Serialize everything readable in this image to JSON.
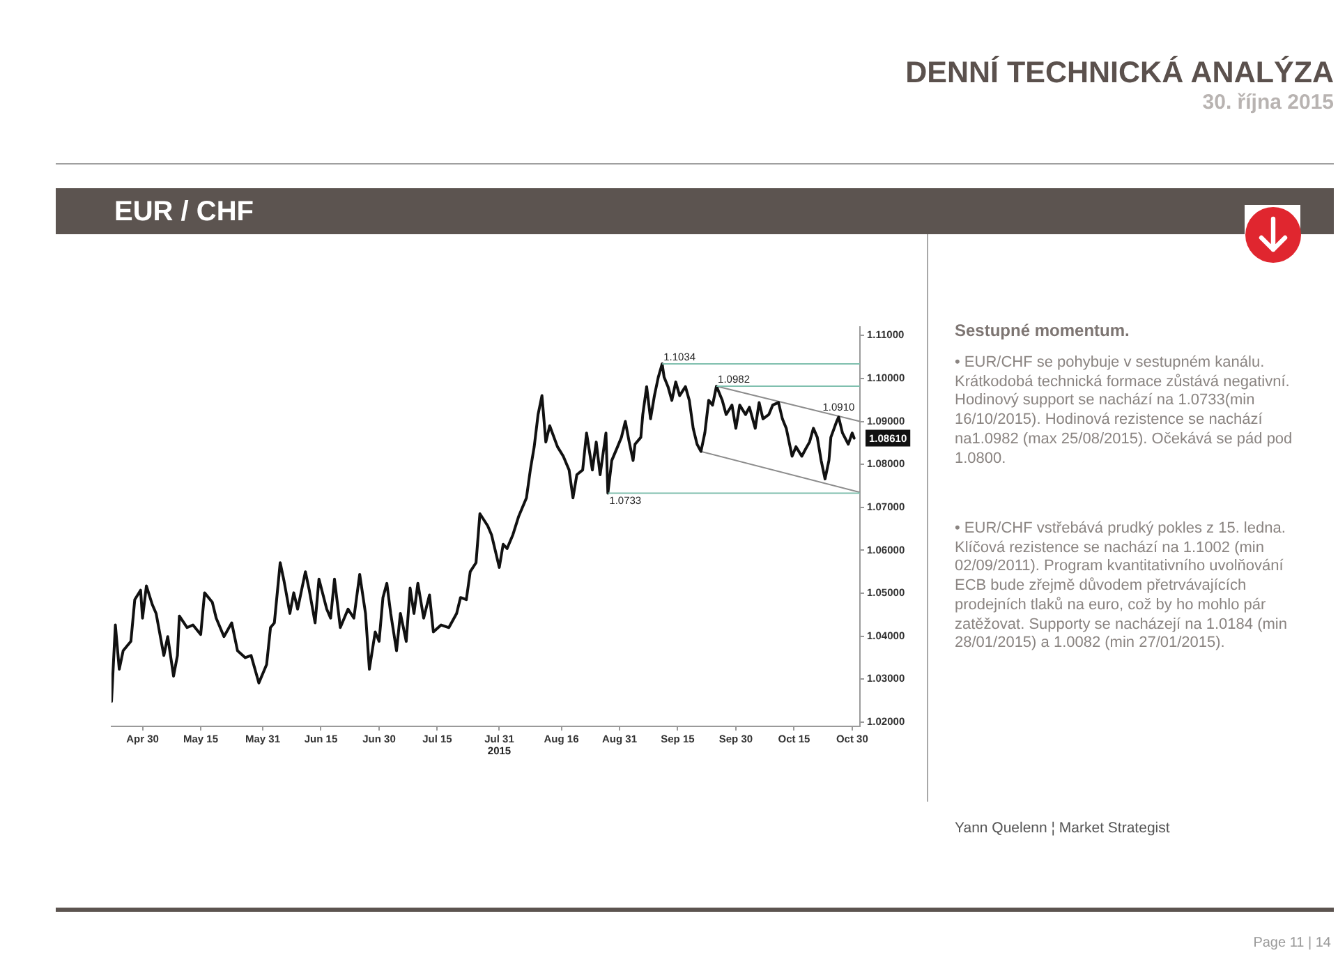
{
  "chart_data": {
    "type": "line",
    "title": "EUR / CHF",
    "x": [
      "2015-04-22",
      "2015-04-23",
      "2015-04-24",
      "2015-04-25",
      "2015-04-27",
      "2015-04-28",
      "2015-04-29T12:00",
      "2015-04-30",
      "2015-05-01",
      "2015-05-02T12:00",
      "2015-05-03T12:00",
      "2015-05-05T12:00",
      "2015-05-06T12:00",
      "2015-05-08",
      "2015-05-09",
      "2015-05-09T12:00",
      "2015-05-11T12:00",
      "2015-05-13",
      "2015-05-15",
      "2015-05-16",
      "2015-05-18",
      "2015-05-19",
      "2015-05-21",
      "2015-05-23",
      "2015-05-24T12:00",
      "2015-05-26T12:00",
      "2015-05-28",
      "2015-05-30",
      "2015-06-01",
      "2015-06-02",
      "2015-06-03",
      "2015-06-04T12:00",
      "2015-06-05T12:00",
      "2015-06-07",
      "2015-06-08",
      "2015-06-09",
      "2015-06-11",
      "2015-06-12",
      "2015-06-13T12:00",
      "2015-06-14T12:00",
      "2015-06-16T12:00",
      "2015-06-17T12:00",
      "2015-06-18T12:00",
      "2015-06-20",
      "2015-06-22",
      "2015-06-23T12:00",
      "2015-06-25",
      "2015-06-26T12:00",
      "2015-06-27T12:00",
      "2015-06-29",
      "2015-06-30",
      "2015-07-01",
      "2015-07-02",
      "2015-07-03",
      "2015-07-04T12:00",
      "2015-07-05T12:00",
      "2015-07-07",
      "2015-07-08",
      "2015-07-09",
      "2015-07-10",
      "2015-07-11T12:00",
      "2015-07-13",
      "2015-07-14",
      "2015-07-16",
      "2015-07-18",
      "2015-07-20",
      "2015-07-21",
      "2015-07-22T12:00",
      "2015-07-23T12:00",
      "2015-07-25",
      "2015-07-26",
      "2015-07-28",
      "2015-07-29",
      "2015-07-31",
      "2015-08-01",
      "2015-08-02",
      "2015-08-03T12:00",
      "2015-08-05",
      "2015-08-07",
      "2015-08-08",
      "2015-08-09",
      "2015-08-10",
      "2015-08-11",
      "2015-08-12",
      "2015-08-13",
      "2015-08-15",
      "2015-08-16T12:00",
      "2015-08-18",
      "2015-08-19",
      "2015-08-20",
      "2015-08-21T12:00",
      "2015-08-22T12:00",
      "2015-08-24",
      "2015-08-25",
      "2015-08-26",
      "2015-08-27T12:00",
      "2015-08-28",
      "2015-08-29",
      "2015-08-30T12:00",
      "2015-08-31T12:00",
      "2015-09-01T12:00",
      "2015-09-02T12:00",
      "2015-09-03T12:00",
      "2015-09-04",
      "2015-09-05T12:00",
      "2015-09-06",
      "2015-09-07",
      "2015-09-08",
      "2015-09-09",
      "2015-09-10",
      "2015-09-11",
      "2015-09-11T12:00",
      "2015-09-12T12:00",
      "2015-09-13T12:00",
      "2015-09-14T12:00",
      "2015-09-15T12:00",
      "2015-09-17",
      "2015-09-18",
      "2015-09-19",
      "2015-09-20",
      "2015-09-21",
      "2015-09-22",
      "2015-09-23",
      "2015-09-24",
      "2015-09-25",
      "2015-09-26T12:00",
      "2015-09-27T12:00",
      "2015-09-29",
      "2015-09-30",
      "2015-10-01",
      "2015-10-02T12:00",
      "2015-10-03T12:00",
      "2015-10-05",
      "2015-10-06",
      "2015-10-07",
      "2015-10-08T12:00",
      "2015-10-09T12:00",
      "2015-10-11",
      "2015-10-12",
      "2015-10-13",
      "2015-10-14T12:00",
      "2015-10-15T12:00",
      "2015-10-17",
      "2015-10-18",
      "2015-10-19",
      "2015-10-20",
      "2015-10-21",
      "2015-10-22",
      "2015-10-23",
      "2015-10-24",
      "2015-10-24T12:00",
      "2015-10-26",
      "2015-10-26T12:00",
      "2015-10-27T12:00",
      "2015-10-29",
      "2015-10-30",
      "2015-10-30T12:00"
    ],
    "series": [
      {
        "color": "#111111",
        "values": [
          1.0248,
          1.0426,
          1.0323,
          1.0366,
          1.0388,
          1.0485,
          1.0507,
          1.0442,
          1.0517,
          1.0474,
          1.0453,
          1.0355,
          1.0399,
          1.0307,
          1.0355,
          1.0447,
          1.042,
          1.0426,
          1.0404,
          1.0501,
          1.0479,
          1.0442,
          1.0399,
          1.0431,
          1.0366,
          1.035,
          1.0355,
          1.0291,
          1.0334,
          1.042,
          1.0431,
          1.0571,
          1.0528,
          1.0453,
          1.0501,
          1.0463,
          1.055,
          1.0507,
          1.0431,
          1.0533,
          1.0463,
          1.0442,
          1.0533,
          1.042,
          1.0463,
          1.0442,
          1.0544,
          1.0453,
          1.0323,
          1.041,
          1.0388,
          1.049,
          1.0523,
          1.0453,
          1.0366,
          1.0453,
          1.0388,
          1.0512,
          1.0453,
          1.0523,
          1.0442,
          1.0496,
          1.041,
          1.0426,
          1.042,
          1.0453,
          1.049,
          1.0485,
          1.055,
          1.0571,
          1.0685,
          1.0657,
          1.0636,
          1.056,
          1.0614,
          1.0604,
          1.0636,
          1.0679,
          1.0722,
          1.0787,
          1.0841,
          1.0916,
          1.096,
          1.0852,
          1.089,
          1.0841,
          1.0819,
          1.0787,
          1.0722,
          1.0776,
          1.0787,
          1.0873,
          1.0787,
          1.0852,
          1.0776,
          1.0873,
          1.0733,
          1.0809,
          1.0841,
          1.0863,
          1.09,
          1.0852,
          1.0809,
          1.0847,
          1.0863,
          1.0916,
          1.0981,
          1.0906,
          1.096,
          1.1003,
          1.1034,
          1.1003,
          1.0981,
          1.0949,
          1.0992,
          1.096,
          1.0981,
          1.0949,
          1.0884,
          1.0847,
          1.083,
          1.0873,
          1.0949,
          1.0938,
          1.0982,
          1.0949,
          1.0916,
          1.0938,
          1.0884,
          1.0938,
          1.0916,
          1.0933,
          1.0884,
          1.0944,
          1.0906,
          1.0916,
          1.0938,
          1.0944,
          1.0906,
          1.0884,
          1.0819,
          1.0841,
          1.0819,
          1.0836,
          1.0852,
          1.0884,
          1.0863,
          1.0809,
          1.0766,
          1.0809,
          1.0863,
          1.09,
          1.091,
          1.0873,
          1.0847,
          1.0873,
          1.0861
        ]
      },
      {
        "type": "line",
        "color": "#8c8c8c",
        "x": [
          "2015-09-25",
          "2015-11-01"
        ],
        "values": [
          1.0982,
          1.09
        ]
      },
      {
        "type": "line",
        "color": "#8c8c8c",
        "x": [
          "2015-09-21",
          "2015-11-01"
        ],
        "values": [
          1.083,
          1.0735
        ]
      }
    ],
    "xlim": [
      "2015-04-22",
      "2015-11-01"
    ],
    "xticks": [
      {
        "value": "2015-04-30",
        "label": "Apr 30"
      },
      {
        "value": "2015-05-15",
        "label": "May 15"
      },
      {
        "value": "2015-05-31",
        "label": "May 31"
      },
      {
        "value": "2015-06-15",
        "label": "Jun 15"
      },
      {
        "value": "2015-06-30",
        "label": "Jun 30"
      },
      {
        "value": "2015-07-15",
        "label": "Jul 15"
      },
      {
        "value": "2015-07-31",
        "label": "Jul 31"
      },
      {
        "value": "2015-08-16",
        "label": "Aug 16"
      },
      {
        "value": "2015-08-31",
        "label": "Aug 31"
      },
      {
        "value": "2015-09-15",
        "label": "Sep 15"
      },
      {
        "value": "2015-09-30",
        "label": "Sep 30"
      },
      {
        "value": "2015-10-15",
        "label": "Oct 15"
      },
      {
        "value": "2015-10-30",
        "label": "Oct 30"
      }
    ],
    "ylim": [
      1.019,
      1.112
    ],
    "yticks": [
      {
        "value": 1.02,
        "label": "1.02000"
      },
      {
        "value": 1.03,
        "label": "1.03000"
      },
      {
        "value": 1.04,
        "label": "1.04000"
      },
      {
        "value": 1.05,
        "label": "1.05000"
      },
      {
        "value": 1.06,
        "label": "1.06000"
      },
      {
        "value": 1.07,
        "label": "1.07000"
      },
      {
        "value": 1.08,
        "label": "1.08000"
      },
      {
        "value": 1.09,
        "label": "1.09000"
      },
      {
        "value": 1.1,
        "label": "1.10000"
      },
      {
        "value": 1.11,
        "label": "1.11000"
      }
    ],
    "ref_lines": [
      {
        "axis": "y",
        "value": 1.1034,
        "label": "1.1034",
        "color": "#7fbfae"
      },
      {
        "axis": "y",
        "value": 1.0982,
        "label": "1.0982",
        "color": "#7fbfae"
      },
      {
        "axis": "y",
        "value": 1.0733,
        "label": "1.0733",
        "color": "#7fbfae"
      }
    ],
    "annotations": [
      "DENNÍ TECHNICKÁ ANALÝZA",
      "30. října 2015",
      "Sestupné momentum.",
      "• EUR/CHF se pohybuje v sestupném kanálu. Krátkodobá technická formace zůstává negativní. Hodinový support se nachází na 1.0733(min 16/10/2015). Hodinová rezistence se nachází na1.0982 (max 25/08/2015). Očekává se pád pod 1.0800.",
      "• EUR/CHF vstřebává prudký pokles z 15. ledna. Klíčová rezistence se nachází na 1.1002 (min 02/09/2011). Program kvantitativního uvolňování ECB bude zřejmě důvodem přetrvávajících prodejních tlaků na euro, což by ho mohlo pár zatěžovat. Supporty se nacházejí na 1.0184 (min 28/01/2015) a 1.0082 (min 27/01/2015).",
      "Yann Quelenn ¦ Market Strategist",
      "Page 11 | 14",
      "1.08610",
      "2015",
      {
        "text": "1.0910",
        "x": "2015-10-26T12:00",
        "y": 1.091
      }
    ]
  }
}
